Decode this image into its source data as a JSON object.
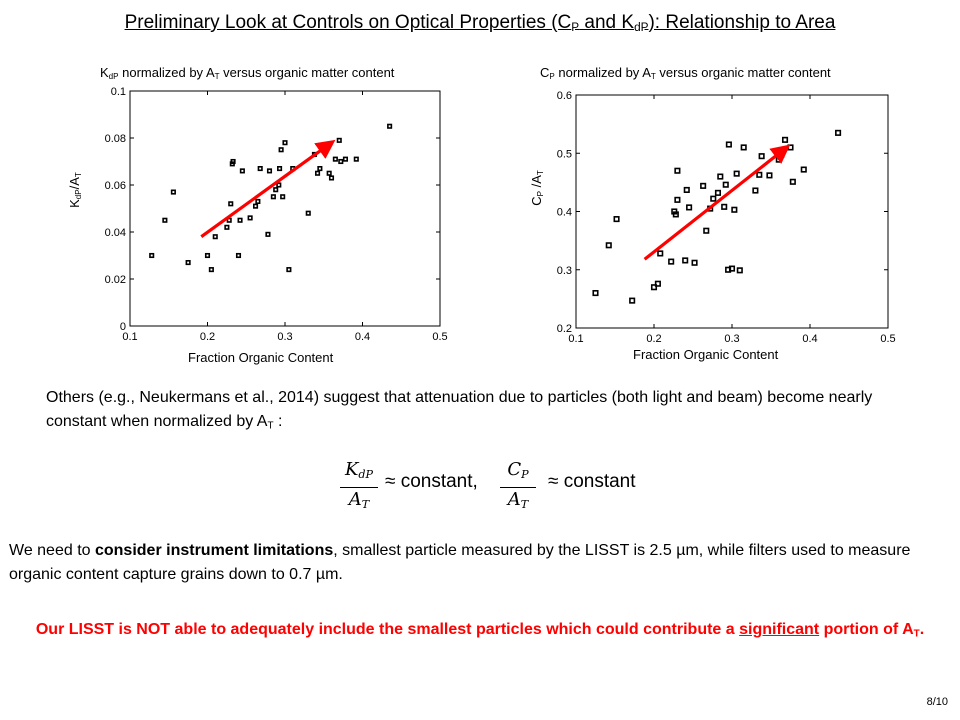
{
  "slide": {
    "title_pre": "Preliminary Look at Controls on Optical Properties (C",
    "title_sub1": "P",
    "title_mid": " and K",
    "title_sub2": "dP",
    "title_post": "): Relationship to Area",
    "page_number": "8/10"
  },
  "left_chart": {
    "title_pre": "K",
    "title_sub1": "dP",
    "title_mid": " normalized by A",
    "title_sub2": "T",
    "title_post": " versus organic matter content",
    "ylabel_pre": "K",
    "ylabel_sub1": "dP",
    "ylabel_mid": "/A",
    "ylabel_sub2": "T",
    "xlabel": "Fraction Organic Content"
  },
  "right_chart": {
    "title_pre": "C",
    "title_sub1": "P",
    "title_mid": " normalized by A",
    "title_sub2": "T",
    "title_post": " versus organic matter content",
    "ylabel_pre": "C",
    "ylabel_sub1": "P",
    "ylabel_mid": " /A",
    "ylabel_sub2": "T",
    "xlabel": "Fraction Organic Content"
  },
  "text": {
    "para1_pre": "Others (e.g., Neukermans et al., 2014) suggest that attenuation due to particles (both light and beam) become nearly constant when normalized by A",
    "para1_sub": "T",
    "para1_post": " :",
    "eq_num1_main": "K",
    "eq_num1_sub": "dP",
    "eq_den1_main": "A",
    "eq_den1_sub": "T",
    "eq_text1": "≈ constant,",
    "eq_num2_main": "C",
    "eq_num2_sub": "P",
    "eq_den2_main": "A",
    "eq_den2_sub": "T",
    "eq_text2": "≈ constant",
    "para2_pre": "We need to ",
    "para2_bold": "consider instrument limitations",
    "para2_post": ", smallest particle measured by the LISST is 2.5 µm, while filters used to measure organic content capture grains down to 0.7 µm.",
    "para3_pre": "Our LISST is NOT able to adequately include the smallest particles which could contribute a ",
    "para3_underlined": "significant",
    "para3_post": " portion of A",
    "para3_sub": "T",
    "para3_end": "."
  },
  "chart_data": [
    {
      "type": "scatter",
      "xlim": [
        0.1,
        0.5
      ],
      "ylim": [
        0,
        0.1
      ],
      "xticks": [
        "0.1",
        "0.2",
        "0.3",
        "0.4",
        "0.5"
      ],
      "yticks": [
        "0",
        "0.02",
        "0.04",
        "0.06",
        "0.08",
        "0.1"
      ],
      "points": [
        [
          0.128,
          0.03
        ],
        [
          0.145,
          0.045
        ],
        [
          0.156,
          0.057
        ],
        [
          0.175,
          0.027
        ],
        [
          0.2,
          0.03
        ],
        [
          0.205,
          0.024
        ],
        [
          0.21,
          0.038
        ],
        [
          0.225,
          0.042
        ],
        [
          0.228,
          0.045
        ],
        [
          0.23,
          0.052
        ],
        [
          0.232,
          0.069
        ],
        [
          0.233,
          0.07
        ],
        [
          0.24,
          0.03
        ],
        [
          0.242,
          0.045
        ],
        [
          0.245,
          0.066
        ],
        [
          0.255,
          0.046
        ],
        [
          0.262,
          0.051
        ],
        [
          0.265,
          0.053
        ],
        [
          0.268,
          0.067
        ],
        [
          0.278,
          0.039
        ],
        [
          0.28,
          0.066
        ],
        [
          0.285,
          0.055
        ],
        [
          0.288,
          0.058
        ],
        [
          0.292,
          0.06
        ],
        [
          0.293,
          0.067
        ],
        [
          0.295,
          0.075
        ],
        [
          0.297,
          0.055
        ],
        [
          0.3,
          0.078
        ],
        [
          0.305,
          0.024
        ],
        [
          0.31,
          0.067
        ],
        [
          0.33,
          0.048
        ],
        [
          0.338,
          0.073
        ],
        [
          0.342,
          0.065
        ],
        [
          0.345,
          0.067
        ],
        [
          0.357,
          0.065
        ],
        [
          0.36,
          0.063
        ],
        [
          0.365,
          0.071
        ],
        [
          0.37,
          0.079
        ],
        [
          0.372,
          0.07
        ],
        [
          0.378,
          0.071
        ],
        [
          0.392,
          0.071
        ],
        [
          0.435,
          0.085
        ]
      ],
      "arrow": {
        "x1": 0.192,
        "y1": 0.038,
        "x2": 0.36,
        "y2": 0.078,
        "color": "#ff0000"
      },
      "marker_color": "#000000"
    },
    {
      "type": "scatter",
      "xlim": [
        0.1,
        0.5
      ],
      "ylim": [
        0.2,
        0.6
      ],
      "xticks": [
        "0.1",
        "0.2",
        "0.3",
        "0.4",
        "0.5"
      ],
      "yticks": [
        "0.2",
        "0.3",
        "0.4",
        "0.5",
        "0.6"
      ],
      "points": [
        [
          0.125,
          0.26
        ],
        [
          0.142,
          0.342
        ],
        [
          0.152,
          0.387
        ],
        [
          0.172,
          0.247
        ],
        [
          0.2,
          0.27
        ],
        [
          0.205,
          0.276
        ],
        [
          0.208,
          0.328
        ],
        [
          0.222,
          0.314
        ],
        [
          0.226,
          0.4
        ],
        [
          0.228,
          0.395
        ],
        [
          0.23,
          0.42
        ],
        [
          0.23,
          0.47
        ],
        [
          0.24,
          0.316
        ],
        [
          0.242,
          0.437
        ],
        [
          0.245,
          0.407
        ],
        [
          0.252,
          0.312
        ],
        [
          0.263,
          0.444
        ],
        [
          0.267,
          0.367
        ],
        [
          0.272,
          0.405
        ],
        [
          0.276,
          0.422
        ],
        [
          0.282,
          0.432
        ],
        [
          0.285,
          0.46
        ],
        [
          0.29,
          0.408
        ],
        [
          0.292,
          0.446
        ],
        [
          0.295,
          0.3
        ],
        [
          0.296,
          0.515
        ],
        [
          0.3,
          0.302
        ],
        [
          0.303,
          0.403
        ],
        [
          0.306,
          0.465
        ],
        [
          0.31,
          0.299
        ],
        [
          0.315,
          0.51
        ],
        [
          0.33,
          0.436
        ],
        [
          0.335,
          0.463
        ],
        [
          0.338,
          0.495
        ],
        [
          0.348,
          0.462
        ],
        [
          0.36,
          0.489
        ],
        [
          0.363,
          0.497
        ],
        [
          0.368,
          0.523
        ],
        [
          0.375,
          0.51
        ],
        [
          0.378,
          0.451
        ],
        [
          0.392,
          0.472
        ],
        [
          0.436,
          0.535
        ]
      ],
      "arrow": {
        "x1": 0.188,
        "y1": 0.318,
        "x2": 0.37,
        "y2": 0.51,
        "color": "#ff0000"
      },
      "marker_color": "#000000"
    }
  ]
}
